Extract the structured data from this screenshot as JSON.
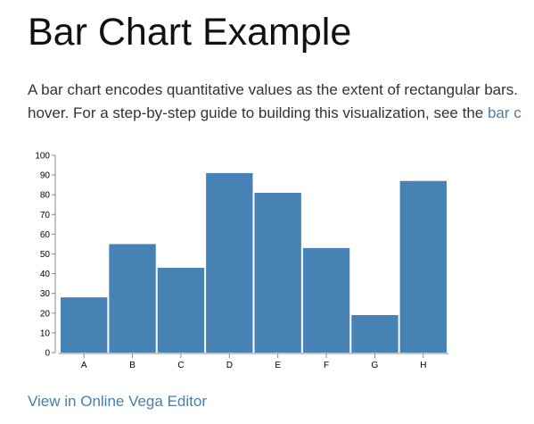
{
  "page": {
    "title": "Bar Chart Example",
    "intro_line1": "A bar chart encodes quantitative values as the extent of rectangular bars. ",
    "intro_line2": "hover. For a step-by-step guide to building this visualization, see the ",
    "intro_link": "bar c",
    "editor_link": "View in Online Vega Editor"
  },
  "colors": {
    "bar": "#4682b4",
    "link": "#4a7fa8"
  },
  "chart_data": {
    "type": "bar",
    "categories": [
      "A",
      "B",
      "C",
      "D",
      "E",
      "F",
      "G",
      "H"
    ],
    "values": [
      28,
      55,
      43,
      91,
      81,
      53,
      19,
      87
    ],
    "ylim": [
      0,
      100
    ],
    "yticks": [
      0,
      10,
      20,
      30,
      40,
      50,
      60,
      70,
      80,
      90,
      100
    ],
    "title": "",
    "xlabel": "",
    "ylabel": "",
    "grid": false
  }
}
